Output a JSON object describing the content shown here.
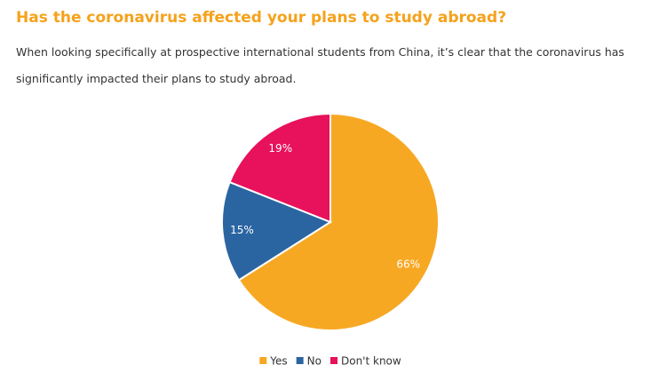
{
  "chart_data": {
    "type": "pie",
    "title": "Has the coronavirus affected your plans to study abroad?",
    "subtitle": "When looking specifically at prospective international students from China, it’s clear that the coronavirus has significantly impacted their plans to study abroad.",
    "categories": [
      "Yes",
      "No",
      "Don't know"
    ],
    "values": [
      66,
      15,
      19
    ],
    "value_labels": [
      "66%",
      "15%",
      "19%"
    ],
    "colors": [
      "#f7a823",
      "#2b65a1",
      "#e8115b"
    ],
    "legend": "bottom"
  }
}
